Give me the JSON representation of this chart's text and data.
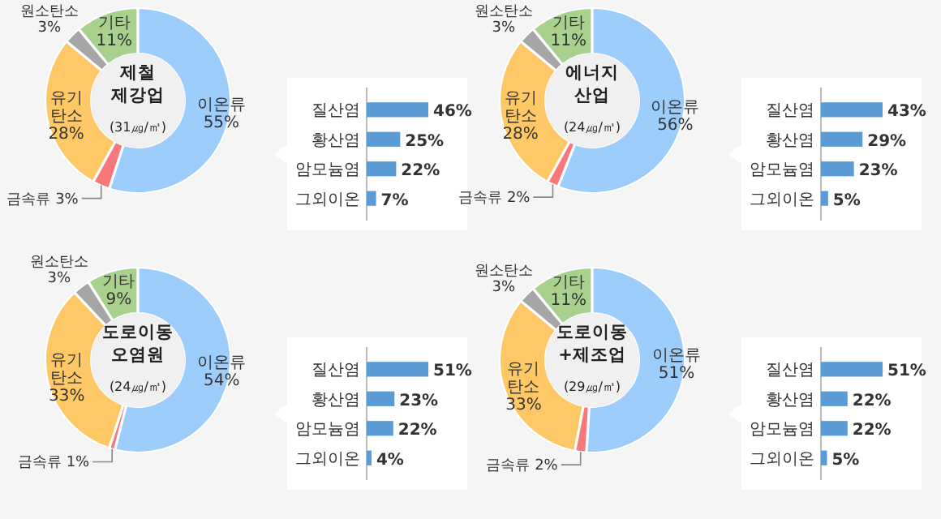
{
  "chart_data": [
    {
      "type": "donut",
      "title": "제철 제강업",
      "subtitle": "(31㎍/㎥)",
      "categories": [
        "이온류",
        "금속류",
        "유기탄소",
        "원소탄소",
        "기타"
      ],
      "values": [
        55,
        3,
        28,
        3,
        11
      ],
      "value_labels": [
        "55%",
        "3%",
        "28%",
        "3%",
        "11%"
      ],
      "colors": [
        "#9dcdfb",
        "#f7777b",
        "#fdc865",
        "#a6a6a6",
        "#a9d18e"
      ]
    },
    {
      "type": "bar",
      "orientation": "horizontal",
      "categories": [
        "질산염",
        "황산염",
        "암모늄염",
        "그외이온"
      ],
      "values": [
        46,
        25,
        22,
        7
      ],
      "value_labels": [
        "46%",
        "25%",
        "22%",
        "7%"
      ],
      "color": "#5b9bd5"
    },
    {
      "type": "donut",
      "title": "에너지 산업",
      "subtitle": "(24㎍/㎥)",
      "categories": [
        "이온류",
        "금속류",
        "유기탄소",
        "원소탄소",
        "기타"
      ],
      "values": [
        56,
        2,
        28,
        3,
        11
      ],
      "value_labels": [
        "56%",
        "2%",
        "28%",
        "3%",
        "11%"
      ],
      "colors": [
        "#9dcdfb",
        "#f7777b",
        "#fdc865",
        "#a6a6a6",
        "#a9d18e"
      ]
    },
    {
      "type": "bar",
      "orientation": "horizontal",
      "categories": [
        "질산염",
        "황산염",
        "암모늄염",
        "그외이온"
      ],
      "values": [
        43,
        29,
        23,
        5
      ],
      "value_labels": [
        "43%",
        "29%",
        "23%",
        "5%"
      ],
      "color": "#5b9bd5"
    },
    {
      "type": "donut",
      "title": "도로이동 오염원",
      "subtitle": "(24㎍/㎥)",
      "categories": [
        "이온류",
        "금속류",
        "유기탄소",
        "원소탄소",
        "기타"
      ],
      "values": [
        54,
        1,
        33,
        3,
        9
      ],
      "value_labels": [
        "54%",
        "1%",
        "33%",
        "3%",
        "9%"
      ],
      "colors": [
        "#9dcdfb",
        "#f7777b",
        "#fdc865",
        "#a6a6a6",
        "#a9d18e"
      ]
    },
    {
      "type": "bar",
      "orientation": "horizontal",
      "categories": [
        "질산염",
        "황산염",
        "암모늄염",
        "그외이온"
      ],
      "values": [
        51,
        23,
        22,
        4
      ],
      "value_labels": [
        "51%",
        "23%",
        "22%",
        "4%"
      ],
      "color": "#5b9bd5"
    },
    {
      "type": "donut",
      "title": "도로이동 +제조업",
      "subtitle": "(29㎍/㎥)",
      "categories": [
        "이온류",
        "금속류",
        "유기탄소",
        "원소탄소",
        "기타"
      ],
      "values": [
        51,
        2,
        33,
        3,
        11
      ],
      "value_labels": [
        "51%",
        "2%",
        "33%",
        "3%",
        "11%"
      ],
      "colors": [
        "#9dcdfb",
        "#f7777b",
        "#fdc865",
        "#a6a6a6",
        "#a9d18e"
      ]
    },
    {
      "type": "bar",
      "orientation": "horizontal",
      "categories": [
        "질산염",
        "황산염",
        "암모늄염",
        "그외이온"
      ],
      "values": [
        51,
        22,
        22,
        5
      ],
      "value_labels": [
        "51%",
        "22%",
        "22%",
        "5%"
      ],
      "color": "#5b9bd5"
    }
  ]
}
